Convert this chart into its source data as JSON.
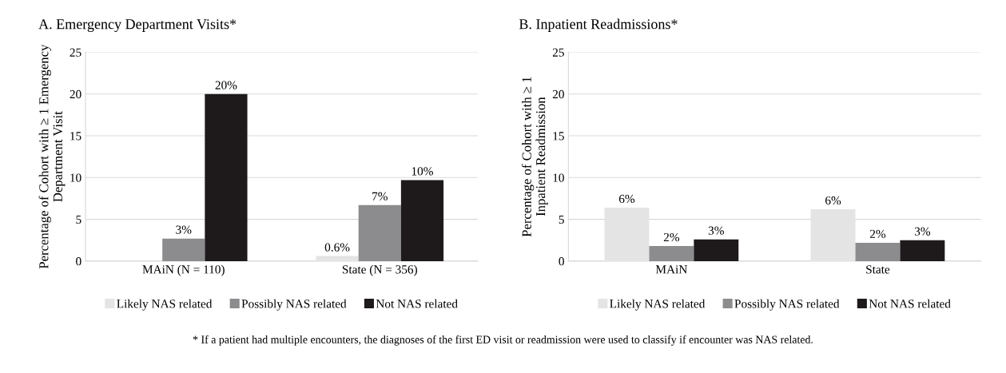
{
  "chart_data": [
    {
      "type": "bar",
      "title": "A. Emergency Department Visits*",
      "ylabel": "Percentage of Cohort with ≥ 1 Emergency\nDepartment Visit",
      "categories": [
        "MAiN (N = 110)",
        "State (N = 356)"
      ],
      "series": [
        {
          "name": "Likely NAS related",
          "color": "#e4e4e4",
          "values": [
            0,
            0.6
          ],
          "value_labels": [
            null,
            "0.6%"
          ]
        },
        {
          "name": "Possibly NAS related",
          "color": "#8c8c8e",
          "values": [
            2.7,
            6.7
          ],
          "value_labels": [
            "3%",
            "7%"
          ]
        },
        {
          "name": "Not NAS related",
          "color": "#1e1a1b",
          "values": [
            20.0,
            9.7
          ],
          "value_labels": [
            "20%",
            "10%"
          ]
        }
      ],
      "ylim": [
        0,
        25
      ],
      "yticks": [
        0,
        5,
        10,
        15,
        20,
        25
      ],
      "grid": "y",
      "legend": "bottom"
    },
    {
      "type": "bar",
      "title": "B. Inpatient Readmissions*",
      "ylabel": "Percentage of Cohort with ≥ 1\nInpatient Readmission",
      "categories": [
        "MAiN",
        "State"
      ],
      "series": [
        {
          "name": "Likely NAS related",
          "color": "#e4e4e4",
          "values": [
            6.4,
            6.2
          ],
          "value_labels": [
            "6%",
            "6%"
          ]
        },
        {
          "name": "Possibly NAS related",
          "color": "#8c8c8e",
          "values": [
            1.8,
            2.2
          ],
          "value_labels": [
            "2%",
            "2%"
          ]
        },
        {
          "name": "Not NAS related",
          "color": "#1e1a1b",
          "values": [
            2.6,
            2.5
          ],
          "value_labels": [
            "3%",
            "3%"
          ]
        }
      ],
      "ylim": [
        0,
        25
      ],
      "yticks": [
        0,
        5,
        10,
        15,
        20,
        25
      ],
      "grid": "y",
      "legend": "bottom",
      "annotations": [
        "* If a patient had multiple encounters, the diagnoses of the first ED visit or readmission were used to classify if encounter was NAS related."
      ]
    }
  ]
}
